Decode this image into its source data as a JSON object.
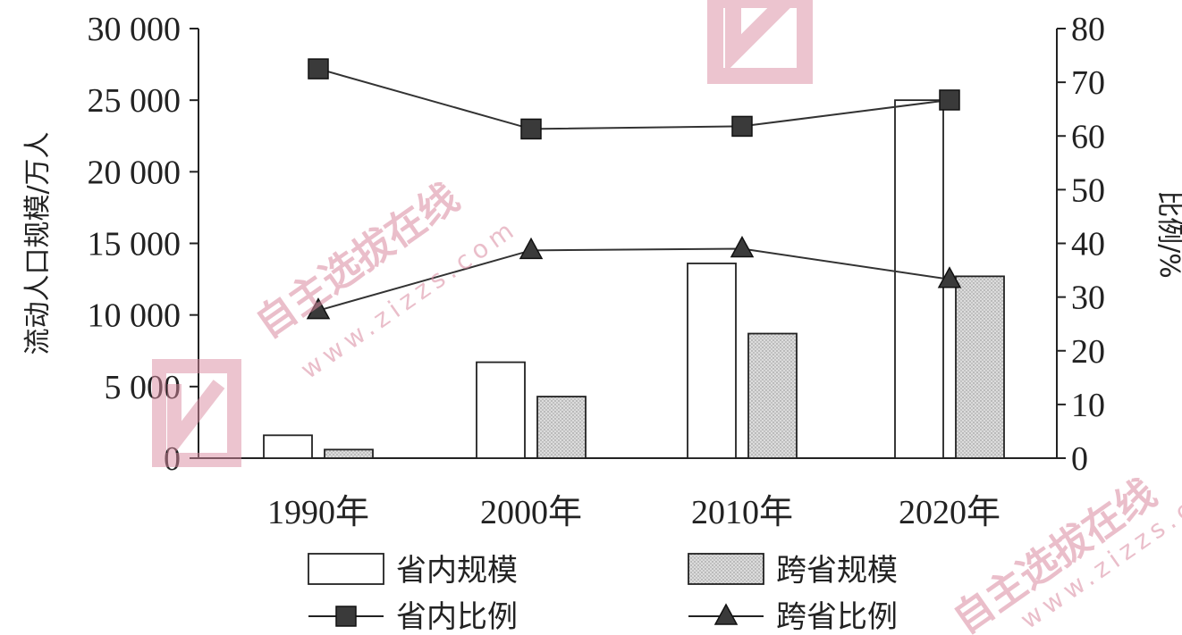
{
  "chart_data": {
    "type": "bar",
    "categories": [
      "1990年",
      "2000年",
      "2010年",
      "2020年"
    ],
    "ylabel": "流动人口规模/万人",
    "y2label": "比例/%",
    "ylim": [
      0,
      30000
    ],
    "y2lim": [
      0,
      80
    ],
    "yticks": [
      "30 000",
      "25 000",
      "20 000",
      "15 000",
      "10 000",
      "5 000",
      "0"
    ],
    "y2ticks": [
      "80",
      "70",
      "60",
      "50",
      "40",
      "30",
      "20",
      "10",
      "0"
    ],
    "bar_series": [
      {
        "name": "省内规模",
        "values": [
          1600,
          6700,
          13600,
          25000
        ],
        "fill": "#ffffff"
      },
      {
        "name": "跨省规模",
        "values": [
          600,
          4300,
          8700,
          12700
        ],
        "fill": "#dcdcdc"
      }
    ],
    "line_series": [
      {
        "name": "省内比例",
        "values": [
          72.5,
          61.3,
          61.8,
          66.7
        ],
        "marker": "square"
      },
      {
        "name": "跨省比例",
        "values": [
          27.5,
          38.7,
          39.0,
          33.3
        ],
        "marker": "triangle"
      }
    ],
    "legend_position": "bottom",
    "grid": false
  },
  "watermark": {
    "text": "自主选拔在线",
    "url": "www.zizzs.com",
    "color": "#d98aa0"
  }
}
